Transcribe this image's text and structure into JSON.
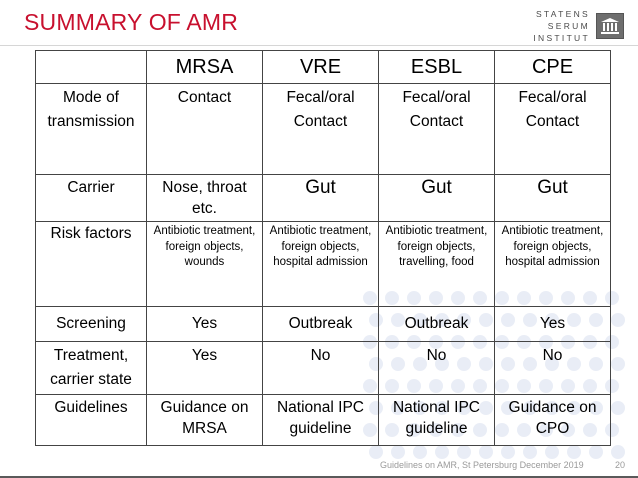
{
  "slide": {
    "title": "SUMMARY OF AMR",
    "page_number": "20",
    "footer": "Guidelines on AMR, St Petersburg December 2019"
  },
  "logo": {
    "lines": [
      "STATENS",
      "SERUM",
      "INSTITUT"
    ],
    "icon": "serum-institut-logo-icon"
  },
  "colors": {
    "title": "#c8102e",
    "decor_dots": "#e9edf6"
  },
  "table": {
    "columns": [
      "",
      "MRSA",
      "VRE",
      "ESBL",
      "CPE"
    ],
    "rows": [
      {
        "label": "Mode of transmission",
        "cells": [
          "Contact",
          "Fecal/oral Contact",
          "Fecal/oral Contact",
          "Fecal/oral Contact"
        ]
      },
      {
        "label": "Carrier",
        "cells": [
          "Nose, throat etc.",
          "Gut",
          "Gut",
          "Gut"
        ]
      },
      {
        "label": "Risk factors",
        "cells": [
          "Antibiotic treatment, foreign objects, wounds",
          "Antibiotic treatment, foreign objects, hospital admission",
          "Antibiotic treatment, foreign objects, travelling, food",
          "Antibiotic treatment, foreign objects, hospital admission"
        ]
      },
      {
        "label": "Screening",
        "cells": [
          "Yes",
          "Outbreak",
          "Outbreak",
          "Yes"
        ]
      },
      {
        "label": "Treatment, carrier state",
        "cells": [
          "Yes",
          "No",
          "No",
          "No"
        ]
      },
      {
        "label": "Guidelines",
        "cells": [
          "Guidance on MRSA",
          "National IPC guideline",
          "National IPC guideline",
          "Guidance on CPO"
        ]
      }
    ]
  }
}
